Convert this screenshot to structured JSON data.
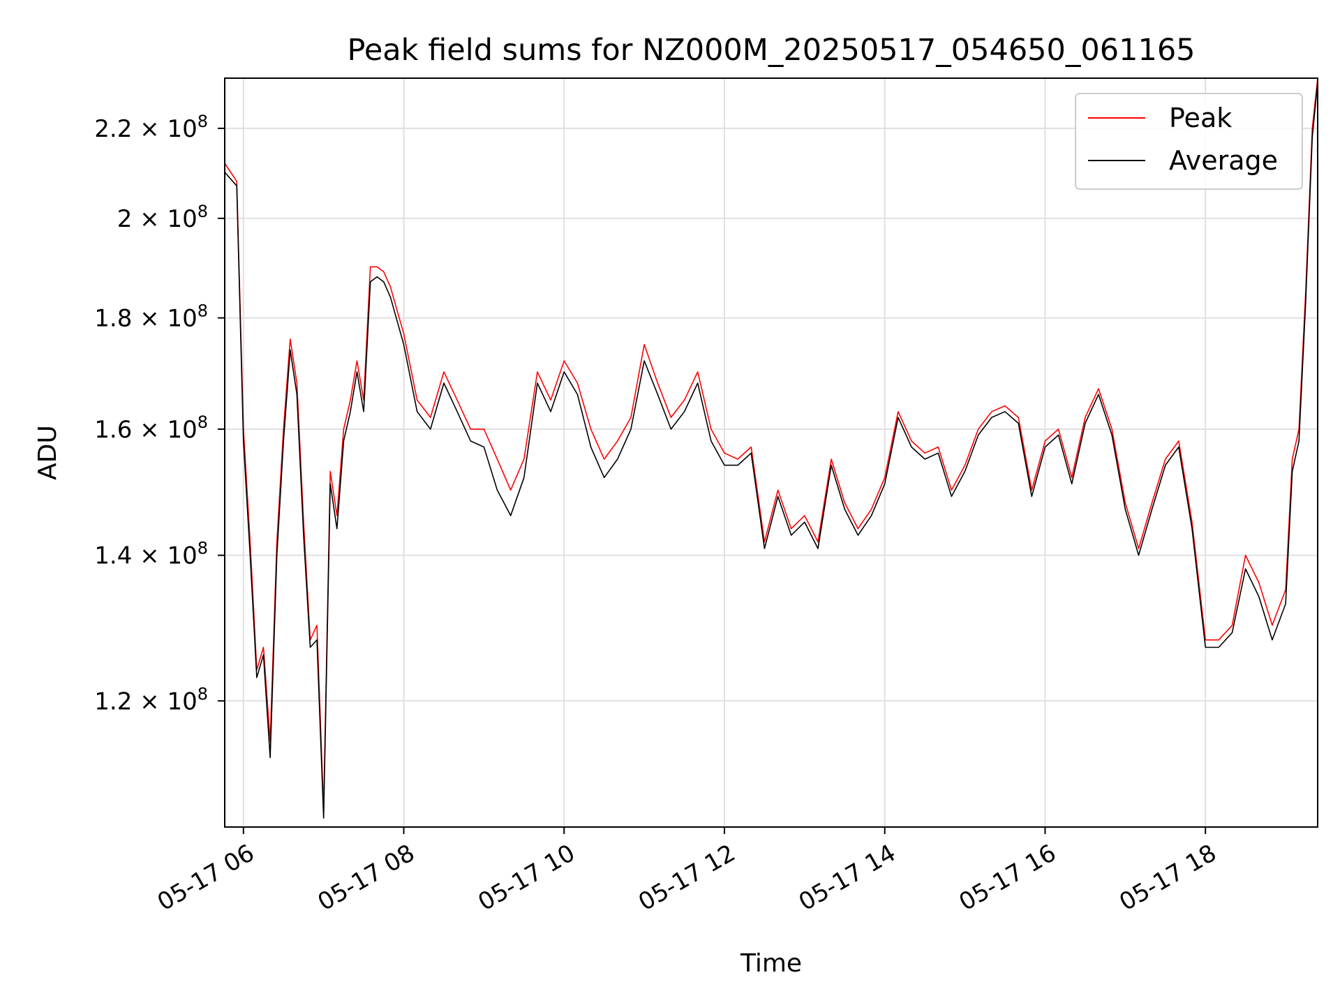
{
  "chart_data": {
    "type": "line",
    "title": "Peak field sums for NZ000M_20250517_054650_061165",
    "xlabel": "Time",
    "ylabel": "ADU",
    "yscale": "log",
    "xlim": [
      "2025-05-17 05:46",
      "2025-05-17 19:24"
    ],
    "ylim": [
      105000000,
      232000000
    ],
    "grid": true,
    "legend_position": "top-right",
    "x_ticks": [
      {
        "label": "05-17 06",
        "value": "2025-05-17 06:00"
      },
      {
        "label": "05-17 08",
        "value": "2025-05-17 08:00"
      },
      {
        "label": "05-17 10",
        "value": "2025-05-17 10:00"
      },
      {
        "label": "05-17 12",
        "value": "2025-05-17 12:00"
      },
      {
        "label": "05-17 14",
        "value": "2025-05-17 14:00"
      },
      {
        "label": "05-17 16",
        "value": "2025-05-17 16:00"
      },
      {
        "label": "05-17 18",
        "value": "2025-05-17 18:00"
      }
    ],
    "y_ticks": [
      {
        "mantissa": "2.2",
        "value": 220000000
      },
      {
        "mantissa": "2",
        "value": 200000000
      },
      {
        "mantissa": "1.8",
        "value": 180000000
      },
      {
        "mantissa": "1.6",
        "value": 160000000
      },
      {
        "mantissa": "1.4",
        "value": 140000000
      },
      {
        "mantissa": "1.2",
        "value": 120000000
      }
    ],
    "y_tick_suffix": "× 10",
    "y_tick_exponent": "8",
    "x": [
      "2025-05-17 05:46",
      "2025-05-17 05:55",
      "2025-05-17 06:00",
      "2025-05-17 06:05",
      "2025-05-17 06:10",
      "2025-05-17 06:15",
      "2025-05-17 06:20",
      "2025-05-17 06:25",
      "2025-05-17 06:30",
      "2025-05-17 06:35",
      "2025-05-17 06:40",
      "2025-05-17 06:45",
      "2025-05-17 06:50",
      "2025-05-17 06:55",
      "2025-05-17 07:00",
      "2025-05-17 07:05",
      "2025-05-17 07:10",
      "2025-05-17 07:15",
      "2025-05-17 07:20",
      "2025-05-17 07:25",
      "2025-05-17 07:30",
      "2025-05-17 07:35",
      "2025-05-17 07:40",
      "2025-05-17 07:45",
      "2025-05-17 07:50",
      "2025-05-17 08:00",
      "2025-05-17 08:10",
      "2025-05-17 08:20",
      "2025-05-17 08:30",
      "2025-05-17 08:40",
      "2025-05-17 08:50",
      "2025-05-17 09:00",
      "2025-05-17 09:10",
      "2025-05-17 09:20",
      "2025-05-17 09:30",
      "2025-05-17 09:40",
      "2025-05-17 09:50",
      "2025-05-17 10:00",
      "2025-05-17 10:10",
      "2025-05-17 10:20",
      "2025-05-17 10:30",
      "2025-05-17 10:40",
      "2025-05-17 10:50",
      "2025-05-17 11:00",
      "2025-05-17 11:10",
      "2025-05-17 11:20",
      "2025-05-17 11:30",
      "2025-05-17 11:40",
      "2025-05-17 11:50",
      "2025-05-17 12:00",
      "2025-05-17 12:10",
      "2025-05-17 12:20",
      "2025-05-17 12:30",
      "2025-05-17 12:40",
      "2025-05-17 12:50",
      "2025-05-17 13:00",
      "2025-05-17 13:10",
      "2025-05-17 13:20",
      "2025-05-17 13:30",
      "2025-05-17 13:40",
      "2025-05-17 13:50",
      "2025-05-17 14:00",
      "2025-05-17 14:10",
      "2025-05-17 14:20",
      "2025-05-17 14:30",
      "2025-05-17 14:40",
      "2025-05-17 14:50",
      "2025-05-17 15:00",
      "2025-05-17 15:10",
      "2025-05-17 15:20",
      "2025-05-17 15:30",
      "2025-05-17 15:40",
      "2025-05-17 15:50",
      "2025-05-17 16:00",
      "2025-05-17 16:10",
      "2025-05-17 16:20",
      "2025-05-17 16:30",
      "2025-05-17 16:40",
      "2025-05-17 16:50",
      "2025-05-17 17:00",
      "2025-05-17 17:10",
      "2025-05-17 17:20",
      "2025-05-17 17:30",
      "2025-05-17 17:40",
      "2025-05-17 17:50",
      "2025-05-17 18:00",
      "2025-05-17 18:10",
      "2025-05-17 18:20",
      "2025-05-17 18:30",
      "2025-05-17 18:40",
      "2025-05-17 18:50",
      "2025-05-17 19:00",
      "2025-05-17 19:05",
      "2025-05-17 19:10",
      "2025-05-17 19:15",
      "2025-05-17 19:20",
      "2025-05-17 19:24"
    ],
    "series": [
      {
        "name": "Peak",
        "color": "#ff0000",
        "values": [
          212000000,
          208000000,
          160000000,
          142000000,
          124000000,
          127000000,
          115000000,
          142000000,
          160000000,
          176000000,
          168000000,
          145000000,
          128000000,
          130000000,
          107000000,
          153000000,
          146000000,
          160000000,
          165000000,
          172000000,
          165000000,
          190000000,
          190000000,
          189000000,
          186000000,
          177000000,
          165000000,
          162000000,
          170000000,
          165000000,
          160000000,
          160000000,
          155000000,
          150000000,
          155000000,
          170000000,
          165000000,
          172000000,
          168000000,
          160000000,
          155000000,
          158000000,
          162000000,
          175000000,
          168000000,
          162000000,
          165000000,
          170000000,
          160000000,
          156000000,
          155000000,
          157000000,
          142000000,
          150000000,
          144000000,
          146000000,
          142000000,
          155000000,
          148000000,
          144000000,
          147000000,
          152000000,
          163000000,
          158000000,
          156000000,
          157000000,
          150000000,
          154000000,
          160000000,
          163000000,
          164000000,
          162000000,
          150000000,
          158000000,
          160000000,
          152000000,
          162000000,
          167000000,
          160000000,
          148000000,
          141000000,
          148000000,
          155000000,
          158000000,
          145000000,
          128000000,
          128000000,
          130000000,
          140000000,
          136000000,
          130000000,
          135000000,
          155000000,
          160000000,
          185000000,
          220000000,
          232000000
        ]
      },
      {
        "name": "Average",
        "color": "#000000",
        "values": [
          210000000,
          207000000,
          158000000,
          140000000,
          123000000,
          126000000,
          113000000,
          140000000,
          158000000,
          174000000,
          166000000,
          143000000,
          127000000,
          128000000,
          106000000,
          151000000,
          144000000,
          158000000,
          163000000,
          170000000,
          163000000,
          187000000,
          188000000,
          187000000,
          184000000,
          175000000,
          163000000,
          160000000,
          168000000,
          163000000,
          158000000,
          157000000,
          150000000,
          146000000,
          152000000,
          168000000,
          163000000,
          170000000,
          166000000,
          157000000,
          152000000,
          155000000,
          160000000,
          172000000,
          166000000,
          160000000,
          163000000,
          168000000,
          158000000,
          154000000,
          154000000,
          156000000,
          141000000,
          149000000,
          143000000,
          145000000,
          141000000,
          154000000,
          147000000,
          143000000,
          146000000,
          151000000,
          162000000,
          157000000,
          155000000,
          156000000,
          149000000,
          153000000,
          159000000,
          162000000,
          163000000,
          161000000,
          149000000,
          157000000,
          159000000,
          151000000,
          161000000,
          166000000,
          159000000,
          147000000,
          140000000,
          147000000,
          154000000,
          157000000,
          144000000,
          127000000,
          127000000,
          129000000,
          138000000,
          134000000,
          128000000,
          133000000,
          153000000,
          158000000,
          183000000,
          218000000,
          231000000
        ]
      }
    ]
  }
}
